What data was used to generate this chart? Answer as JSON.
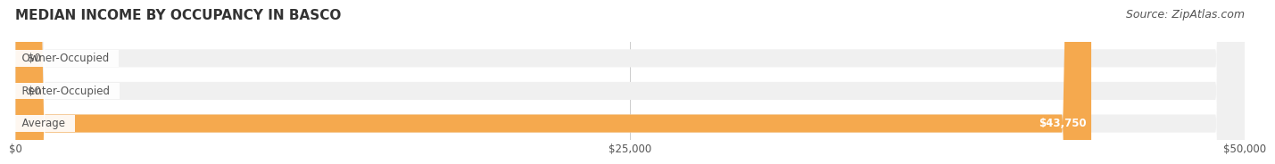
{
  "title": "MEDIAN INCOME BY OCCUPANCY IN BASCO",
  "source_text": "Source: ZipAtlas.com",
  "categories": [
    "Owner-Occupied",
    "Renter-Occupied",
    "Average"
  ],
  "values": [
    0,
    0,
    43750
  ],
  "bar_colors": [
    "#6dcdc8",
    "#c9a8d4",
    "#f5a94e"
  ],
  "label_colors": [
    "#6dcdc8",
    "#c9a8d4",
    "#f5a94e"
  ],
  "bar_bg_color": "#f0f0f0",
  "value_labels": [
    "$0",
    "$0",
    "$43,750"
  ],
  "xlim": [
    0,
    50000
  ],
  "xtick_values": [
    0,
    25000,
    50000
  ],
  "xtick_labels": [
    "$0",
    "$25,000",
    "$50,000"
  ],
  "title_fontsize": 11,
  "source_fontsize": 9,
  "bar_height": 0.55,
  "bg_color": "#ffffff",
  "plot_bg_color": "#ffffff",
  "title_color": "#333333",
  "source_color": "#555555",
  "label_text_color": "#555555",
  "value_inside_color": "#ffffff",
  "value_outside_color": "#555555",
  "tick_label_color": "#555555"
}
